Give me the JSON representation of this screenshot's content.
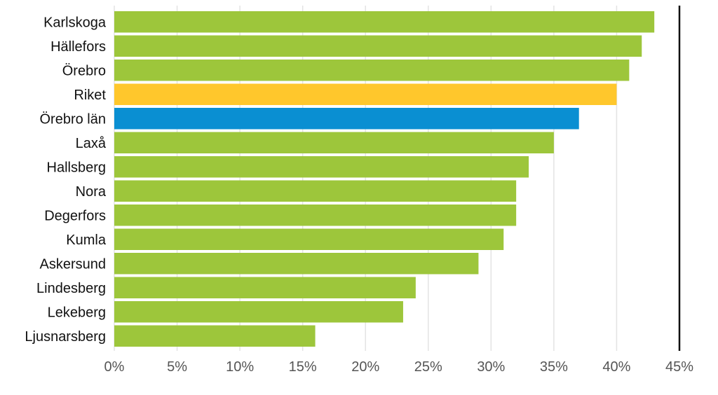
{
  "chart_data": {
    "type": "bar",
    "orientation": "horizontal",
    "title": "",
    "xlabel": "",
    "ylabel": "",
    "xlim": [
      0,
      45
    ],
    "x_ticks": [
      0,
      5,
      10,
      15,
      20,
      25,
      30,
      35,
      40,
      45
    ],
    "tick_suffix": "%",
    "grid": true,
    "legend": "none",
    "reference_line": 45,
    "categories": [
      "Karlskoga",
      "Hällefors",
      "Örebro",
      "Riket",
      "Örebro län",
      "Laxå",
      "Hallsberg",
      "Nora",
      "Degerfors",
      "Kumla",
      "Askersund",
      "Lindesberg",
      "Lekeberg",
      "Ljusnarsberg"
    ],
    "values": [
      43,
      42,
      41,
      40,
      37,
      35,
      33,
      32,
      32,
      31,
      29,
      24,
      23,
      16
    ],
    "colors": {
      "default": "#9dc63b",
      "Riket": "#ffc72c",
      "Örebro län": "#0a8fd2"
    }
  }
}
